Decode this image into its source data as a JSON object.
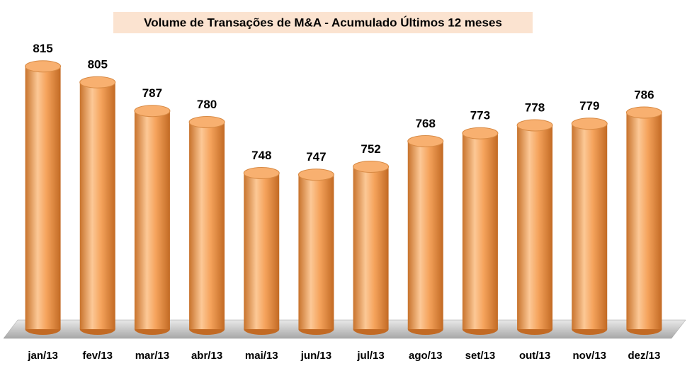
{
  "chart_data": {
    "type": "bar",
    "title": "Volume de Transações de M&A - Acumulado Últimos 12 meses",
    "categories": [
      "jan/13",
      "fev/13",
      "mar/13",
      "abr/13",
      "mai/13",
      "jun/13",
      "jul/13",
      "ago/13",
      "set/13",
      "out/13",
      "nov/13",
      "dez/13"
    ],
    "values": [
      815,
      805,
      787,
      780,
      748,
      747,
      752,
      768,
      773,
      778,
      779,
      786
    ],
    "color": "#f5a35c",
    "ylim": [
      650,
      830
    ]
  }
}
